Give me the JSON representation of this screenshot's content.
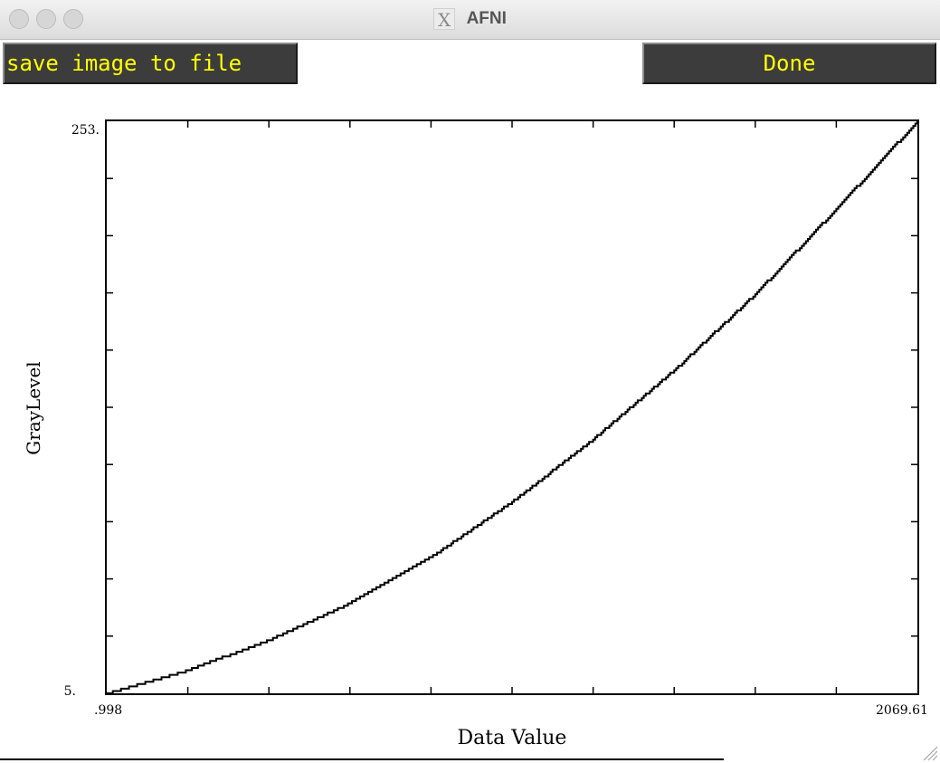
{
  "window": {
    "title": "AFNI"
  },
  "toolbar": {
    "save_label": "save image to file",
    "done_label": "Done"
  },
  "colors": {
    "button_bg": "#3c3c3c",
    "button_text": "#ffff00",
    "plot_line": "#000000"
  },
  "icons": {
    "title_logo": "x11-logo-icon",
    "resize": "resize-grip-icon"
  },
  "chart_data": {
    "type": "line",
    "xlabel": "Data Value",
    "ylabel": "GrayLevel",
    "x_tick_labels": {
      "min": ".998",
      "max": "2069.61"
    },
    "y_tick_labels": {
      "min": "5.",
      "max": "253."
    },
    "xlim": [
      0.998,
      2069.61
    ],
    "ylim": [
      5,
      253
    ],
    "grid": false,
    "step": true,
    "series": [
      {
        "x": [
          0.998,
          207.86,
          414.72,
          621.58,
          828.44,
          1035.3,
          1242.16,
          1449.02,
          1655.88,
          1862.74,
          2069.61
        ],
        "values": [
          5,
          15,
          28,
          44,
          64,
          88,
          115,
          145,
          178,
          215,
          253
        ]
      }
    ]
  }
}
